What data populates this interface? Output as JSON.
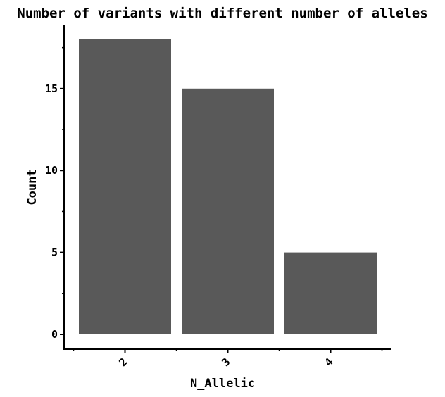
{
  "chart_data": {
    "type": "bar",
    "title": "Number of variants with different number of alleles",
    "xlabel": "N_Allelic",
    "ylabel": "Count",
    "categories": [
      "2",
      "3",
      "4"
    ],
    "values": [
      18,
      15,
      5
    ],
    "ylim": [
      -0.9,
      18.9
    ],
    "yticks": [
      "0",
      "5",
      "10",
      "15"
    ],
    "bar_color": "#595959",
    "grid": false,
    "legend": "none",
    "xtick_rotation": "45"
  }
}
